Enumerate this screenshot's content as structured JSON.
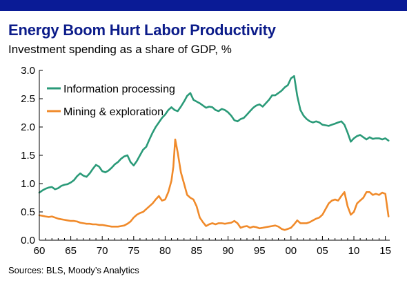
{
  "header": {
    "title": "Energy Boom Hurt Labor Productivity",
    "subtitle": "Investment spending as a share of GDP, %"
  },
  "footer": {
    "source": "Sources: BLS, Moody’s Analytics"
  },
  "colors": {
    "top_bar": "#0a1b96",
    "title": "#0c1c8a",
    "info": "#2a9a78",
    "mining": "#f08a2a"
  },
  "chart_data": {
    "type": "line",
    "title": "Energy Boom Hurt Labor Productivity",
    "subtitle": "Investment spending as a share of GDP, %",
    "xlabel": "",
    "ylabel": "",
    "xlim": [
      1960,
      2015.7
    ],
    "ylim": [
      0,
      3.0
    ],
    "y_ticks": [
      0.0,
      0.5,
      1.0,
      1.5,
      2.0,
      2.5,
      3.0
    ],
    "y_tick_labels": [
      "0.0",
      "0.5",
      "1.0",
      "1.5",
      "2.0",
      "2.5",
      "3.0"
    ],
    "x_ticks": [
      1960,
      1965,
      1970,
      1975,
      1980,
      1985,
      1990,
      1995,
      2000,
      2005,
      2010,
      2015
    ],
    "x_tick_labels": [
      "60",
      "65",
      "70",
      "75",
      "80",
      "85",
      "90",
      "95",
      "00",
      "05",
      "10",
      "15"
    ],
    "grid": false,
    "legend": "top-left",
    "series": [
      {
        "name": "Information processing",
        "color": "#2a9a78",
        "x": [
          1960,
          1960.5,
          1961,
          1961.5,
          1962,
          1962.5,
          1963,
          1963.5,
          1964,
          1964.5,
          1965,
          1965.5,
          1966,
          1966.5,
          1967,
          1967.5,
          1968,
          1968.5,
          1969,
          1969.5,
          1970,
          1970.5,
          1971,
          1971.5,
          1972,
          1972.5,
          1973,
          1973.5,
          1974,
          1974.5,
          1975,
          1975.5,
          1976,
          1976.5,
          1977,
          1977.5,
          1978,
          1978.5,
          1979,
          1979.5,
          1980,
          1980.5,
          1981,
          1981.5,
          1982,
          1982.5,
          1983,
          1983.5,
          1984,
          1984.5,
          1985,
          1985.5,
          1986,
          1986.5,
          1987,
          1987.5,
          1988,
          1988.5,
          1989,
          1989.5,
          1990,
          1990.5,
          1991,
          1991.5,
          1992,
          1992.5,
          1993,
          1993.5,
          1994,
          1994.5,
          1995,
          1995.5,
          1996,
          1996.5,
          1997,
          1997.5,
          1998,
          1998.5,
          1999,
          1999.5,
          2000,
          2000.5,
          2001,
          2001.5,
          2002,
          2002.5,
          2003,
          2003.5,
          2004,
          2004.5,
          2005,
          2005.5,
          2006,
          2006.5,
          2007,
          2007.5,
          2008,
          2008.5,
          2009,
          2009.5,
          2010,
          2010.5,
          2011,
          2011.5,
          2012,
          2012.5,
          2013,
          2013.5,
          2014,
          2014.5,
          2015,
          2015.5
        ],
        "values": [
          0.84,
          0.88,
          0.91,
          0.93,
          0.94,
          0.9,
          0.92,
          0.96,
          0.98,
          0.99,
          1.02,
          1.06,
          1.13,
          1.18,
          1.14,
          1.12,
          1.18,
          1.26,
          1.33,
          1.3,
          1.22,
          1.2,
          1.23,
          1.28,
          1.34,
          1.38,
          1.44,
          1.48,
          1.5,
          1.38,
          1.32,
          1.4,
          1.5,
          1.6,
          1.65,
          1.78,
          1.9,
          2.0,
          2.08,
          2.16,
          2.22,
          2.3,
          2.35,
          2.3,
          2.28,
          2.36,
          2.45,
          2.55,
          2.6,
          2.48,
          2.45,
          2.42,
          2.38,
          2.34,
          2.36,
          2.35,
          2.3,
          2.28,
          2.32,
          2.3,
          2.26,
          2.2,
          2.12,
          2.1,
          2.14,
          2.16,
          2.22,
          2.28,
          2.34,
          2.38,
          2.4,
          2.36,
          2.42,
          2.48,
          2.56,
          2.56,
          2.6,
          2.64,
          2.7,
          2.74,
          2.86,
          2.9,
          2.55,
          2.3,
          2.2,
          2.14,
          2.1,
          2.08,
          2.1,
          2.08,
          2.04,
          2.03,
          2.02,
          2.04,
          2.06,
          2.08,
          2.1,
          2.04,
          1.9,
          1.74,
          1.8,
          1.84,
          1.86,
          1.82,
          1.78,
          1.82,
          1.79,
          1.8,
          1.8,
          1.78,
          1.8,
          1.76
        ]
      },
      {
        "name": "Mining & exploration",
        "color": "#f08a2a",
        "x": [
          1960,
          1960.5,
          1961,
          1961.5,
          1962,
          1962.5,
          1963,
          1963.5,
          1964,
          1964.5,
          1965,
          1965.5,
          1966,
          1966.5,
          1967,
          1967.5,
          1968,
          1968.5,
          1969,
          1969.5,
          1970,
          1970.5,
          1971,
          1971.5,
          1972,
          1972.5,
          1973,
          1973.5,
          1974,
          1974.5,
          1975,
          1975.5,
          1976,
          1976.5,
          1977,
          1977.5,
          1978,
          1978.5,
          1979,
          1979.5,
          1980,
          1980.5,
          1981,
          1981.3,
          1981.6,
          1982,
          1982.5,
          1983,
          1983.5,
          1984,
          1984.5,
          1985,
          1985.5,
          1986,
          1986.5,
          1987,
          1987.5,
          1988,
          1988.5,
          1989,
          1989.5,
          1990,
          1990.5,
          1991,
          1991.5,
          1992,
          1992.5,
          1993,
          1993.5,
          1994,
          1994.5,
          1995,
          1995.5,
          1996,
          1996.5,
          1997,
          1997.5,
          1998,
          1998.5,
          1999,
          1999.5,
          2000,
          2000.5,
          2001,
          2001.5,
          2002,
          2002.5,
          2003,
          2003.5,
          2004,
          2004.5,
          2005,
          2005.5,
          2006,
          2006.5,
          2007,
          2007.5,
          2008,
          2008.5,
          2009,
          2009.5,
          2010,
          2010.5,
          2011,
          2011.5,
          2012,
          2012.5,
          2013,
          2013.5,
          2014,
          2014.5,
          2015,
          2015.5
        ],
        "values": [
          0.44,
          0.43,
          0.42,
          0.41,
          0.42,
          0.4,
          0.38,
          0.37,
          0.36,
          0.35,
          0.34,
          0.34,
          0.33,
          0.31,
          0.3,
          0.29,
          0.29,
          0.28,
          0.28,
          0.27,
          0.27,
          0.26,
          0.25,
          0.24,
          0.24,
          0.24,
          0.25,
          0.26,
          0.29,
          0.33,
          0.4,
          0.45,
          0.48,
          0.5,
          0.55,
          0.6,
          0.65,
          0.72,
          0.78,
          0.7,
          0.72,
          0.85,
          1.05,
          1.3,
          1.78,
          1.55,
          1.2,
          1.0,
          0.8,
          0.75,
          0.72,
          0.6,
          0.4,
          0.32,
          0.25,
          0.28,
          0.3,
          0.28,
          0.3,
          0.3,
          0.29,
          0.3,
          0.31,
          0.34,
          0.3,
          0.22,
          0.24,
          0.25,
          0.22,
          0.24,
          0.23,
          0.21,
          0.22,
          0.23,
          0.24,
          0.25,
          0.26,
          0.24,
          0.2,
          0.18,
          0.2,
          0.22,
          0.28,
          0.35,
          0.3,
          0.3,
          0.3,
          0.32,
          0.35,
          0.38,
          0.4,
          0.45,
          0.55,
          0.65,
          0.7,
          0.72,
          0.7,
          0.78,
          0.85,
          0.6,
          0.45,
          0.5,
          0.65,
          0.7,
          0.75,
          0.85,
          0.85,
          0.8,
          0.82,
          0.8,
          0.84,
          0.82,
          0.42
        ]
      }
    ]
  }
}
